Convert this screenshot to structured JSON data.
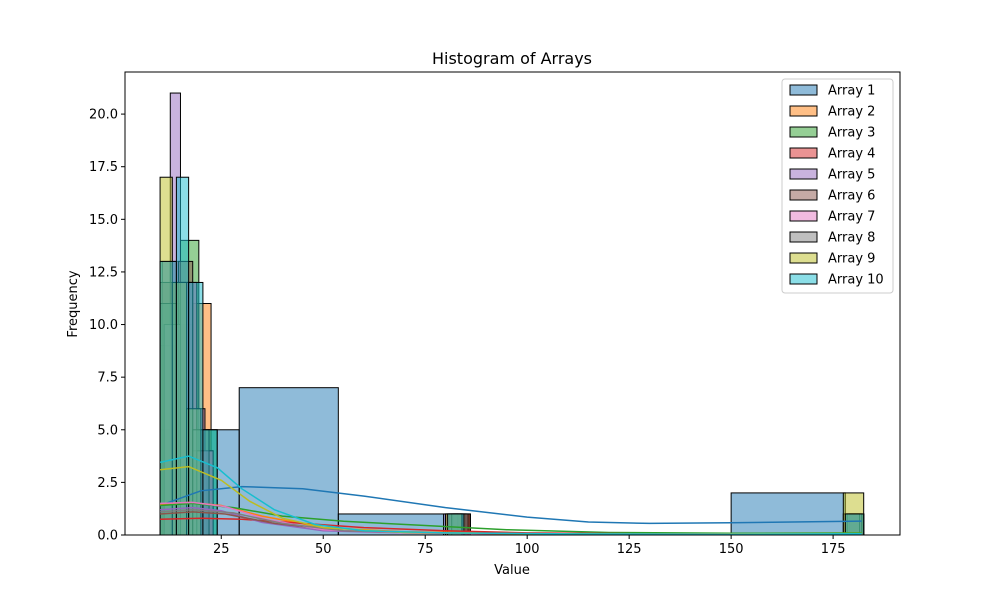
{
  "chart_data": {
    "type": "histogram",
    "title": "Histogram of Arrays",
    "xlabel": "Value",
    "ylabel": "Frequency",
    "xlim": [
      1.4,
      191.4
    ],
    "ylim": [
      0,
      22.0
    ],
    "x_ticks": [
      25,
      50,
      75,
      100,
      125,
      150,
      175
    ],
    "x_tick_labels": [
      "25",
      "50",
      "75",
      "100",
      "125",
      "150",
      "175"
    ],
    "y_ticks": [
      0,
      2.5,
      5,
      7.5,
      10,
      12.5,
      15,
      17.5,
      20
    ],
    "y_tick_labels": [
      "0.0",
      "2.5",
      "5.0",
      "7.5",
      "10.0",
      "12.5",
      "15.0",
      "17.5",
      "20.0"
    ],
    "grid": false,
    "legend_position": "top-right",
    "kde": true,
    "series": [
      {
        "name": "Array 1",
        "color": "#1f77b4",
        "bins": [
          {
            "x0": 10.0,
            "x1": 29.4,
            "count": 5
          },
          {
            "x0": 29.4,
            "x1": 53.7,
            "count": 7
          },
          {
            "x0": 53.7,
            "x1": 86.1,
            "count": 1
          },
          {
            "x0": 150.0,
            "x1": 178.0,
            "count": 2
          },
          {
            "x0": 178.0,
            "x1": 182.5,
            "count": 1
          }
        ],
        "kde": [
          [
            10,
            1.4
          ],
          [
            20,
            2.1
          ],
          [
            30,
            2.3
          ],
          [
            45,
            2.2
          ],
          [
            60,
            1.85
          ],
          [
            80,
            1.3
          ],
          [
            100,
            0.85
          ],
          [
            115,
            0.62
          ],
          [
            130,
            0.55
          ],
          [
            150,
            0.58
          ],
          [
            165,
            0.62
          ],
          [
            182,
            0.66
          ]
        ]
      },
      {
        "name": "Array 2",
        "color": "#ff7f0e",
        "bins": [
          {
            "x0": 10.0,
            "x1": 14.0,
            "count": 9
          },
          {
            "x0": 14.0,
            "x1": 18.0,
            "count": 10
          },
          {
            "x0": 18.0,
            "x1": 22.5,
            "count": 11
          },
          {
            "x0": 80.5,
            "x1": 86.0,
            "count": 1
          },
          {
            "x0": 178.0,
            "x1": 182.0,
            "count": 1
          }
        ],
        "kde": [
          [
            10,
            1.45
          ],
          [
            17,
            1.55
          ],
          [
            25,
            1.4
          ],
          [
            35,
            0.9
          ],
          [
            50,
            0.35
          ],
          [
            70,
            0.15
          ],
          [
            90,
            0.1
          ],
          [
            120,
            0.05
          ],
          [
            150,
            0.05
          ],
          [
            182,
            0.08
          ]
        ]
      },
      {
        "name": "Array 3",
        "color": "#2ca02c",
        "bins": [
          {
            "x0": 10.0,
            "x1": 15.0,
            "count": 11
          },
          {
            "x0": 15.0,
            "x1": 19.5,
            "count": 14
          },
          {
            "x0": 19.5,
            "x1": 24.0,
            "count": 5
          },
          {
            "x0": 80.0,
            "x1": 85.0,
            "count": 1
          },
          {
            "x0": 178.5,
            "x1": 182.5,
            "count": 1
          }
        ],
        "kde": [
          [
            10,
            1.4
          ],
          [
            18,
            1.5
          ],
          [
            28,
            1.3
          ],
          [
            40,
            0.9
          ],
          [
            55,
            0.65
          ],
          [
            75,
            0.45
          ],
          [
            95,
            0.25
          ],
          [
            120,
            0.12
          ],
          [
            150,
            0.08
          ],
          [
            182,
            0.1
          ]
        ]
      },
      {
        "name": "Array 4",
        "color": "#d62728",
        "bins": [
          {
            "x0": 10.5,
            "x1": 15.0,
            "count": 13
          },
          {
            "x0": 15.0,
            "x1": 19.0,
            "count": 12
          },
          {
            "x0": 19.0,
            "x1": 23.0,
            "count": 4
          },
          {
            "x0": 82.0,
            "x1": 86.0,
            "count": 1
          },
          {
            "x0": 179.0,
            "x1": 182.5,
            "count": 1
          }
        ],
        "kde": [
          [
            10,
            0.75
          ],
          [
            20,
            0.8
          ],
          [
            30,
            0.75
          ],
          [
            45,
            0.55
          ],
          [
            60,
            0.35
          ],
          [
            80,
            0.2
          ],
          [
            100,
            0.1
          ],
          [
            130,
            0.05
          ],
          [
            160,
            0.05
          ],
          [
            182,
            0.06
          ]
        ]
      },
      {
        "name": "Array 5",
        "color": "#9467bd",
        "bins": [
          {
            "x0": 12.5,
            "x1": 15.0,
            "count": 21
          },
          {
            "x0": 15.0,
            "x1": 18.0,
            "count": 12
          },
          {
            "x0": 18.0,
            "x1": 21.0,
            "count": 6
          },
          {
            "x0": 79.5,
            "x1": 83.0,
            "count": 1
          },
          {
            "x0": 179.0,
            "x1": 182.0,
            "count": 1
          }
        ],
        "kde": [
          [
            10,
            1.2
          ],
          [
            18,
            1.3
          ],
          [
            25,
            1.15
          ],
          [
            35,
            0.6
          ],
          [
            50,
            0.2
          ],
          [
            70,
            0.1
          ],
          [
            100,
            0.05
          ],
          [
            140,
            0.03
          ],
          [
            182,
            0.05
          ]
        ]
      },
      {
        "name": "Array 6",
        "color": "#8c564b",
        "bins": [
          {
            "x0": 10.0,
            "x1": 14.5,
            "count": 12
          },
          {
            "x0": 14.5,
            "x1": 18.0,
            "count": 13
          },
          {
            "x0": 18.0,
            "x1": 21.5,
            "count": 4
          },
          {
            "x0": 81.0,
            "x1": 85.0,
            "count": 1
          },
          {
            "x0": 178.0,
            "x1": 181.5,
            "count": 1
          }
        ],
        "kde": [
          [
            10,
            1.0
          ],
          [
            18,
            1.1
          ],
          [
            26,
            1.0
          ],
          [
            38,
            0.55
          ],
          [
            55,
            0.2
          ],
          [
            75,
            0.1
          ],
          [
            100,
            0.05
          ],
          [
            140,
            0.03
          ],
          [
            182,
            0.05
          ]
        ]
      },
      {
        "name": "Array 7",
        "color": "#e377c2",
        "bins": [
          {
            "x0": 11.0,
            "x1": 15.0,
            "count": 10
          },
          {
            "x0": 15.0,
            "x1": 19.0,
            "count": 12
          },
          {
            "x0": 19.0,
            "x1": 23.0,
            "count": 4
          },
          {
            "x0": 80.0,
            "x1": 84.0,
            "count": 1
          },
          {
            "x0": 178.5,
            "x1": 182.0,
            "count": 1
          }
        ],
        "kde": [
          [
            10,
            1.5
          ],
          [
            18,
            1.55
          ],
          [
            26,
            1.35
          ],
          [
            36,
            0.75
          ],
          [
            50,
            0.25
          ],
          [
            70,
            0.1
          ],
          [
            100,
            0.05
          ],
          [
            140,
            0.03
          ],
          [
            182,
            0.05
          ]
        ]
      },
      {
        "name": "Array 8",
        "color": "#7f7f7f",
        "bins": [
          {
            "x0": 10.0,
            "x1": 14.0,
            "count": 11
          },
          {
            "x0": 14.0,
            "x1": 18.0,
            "count": 12
          },
          {
            "x0": 18.0,
            "x1": 22.0,
            "count": 5
          },
          {
            "x0": 81.5,
            "x1": 85.5,
            "count": 1
          },
          {
            "x0": 177.5,
            "x1": 181.5,
            "count": 1
          }
        ],
        "kde": [
          [
            10,
            1.1
          ],
          [
            18,
            1.2
          ],
          [
            28,
            1.05
          ],
          [
            40,
            0.55
          ],
          [
            55,
            0.2
          ],
          [
            75,
            0.1
          ],
          [
            100,
            0.05
          ],
          [
            140,
            0.03
          ],
          [
            182,
            0.05
          ]
        ]
      },
      {
        "name": "Array 9",
        "color": "#bcbd22",
        "bins": [
          {
            "x0": 10.0,
            "x1": 13.0,
            "count": 17
          },
          {
            "x0": 13.0,
            "x1": 16.5,
            "count": 12
          },
          {
            "x0": 16.5,
            "x1": 20.0,
            "count": 6
          },
          {
            "x0": 80.0,
            "x1": 84.0,
            "count": 1
          },
          {
            "x0": 177.5,
            "x1": 182.5,
            "count": 2
          }
        ],
        "kde": [
          [
            10,
            3.1
          ],
          [
            17,
            3.25
          ],
          [
            25,
            2.6
          ],
          [
            32,
            1.6
          ],
          [
            40,
            0.8
          ],
          [
            50,
            0.35
          ],
          [
            70,
            0.12
          ],
          [
            100,
            0.06
          ],
          [
            140,
            0.05
          ],
          [
            182,
            0.07
          ]
        ]
      },
      {
        "name": "Array 10",
        "color": "#17becf",
        "bins": [
          {
            "x0": 10.0,
            "x1": 14.0,
            "count": 13
          },
          {
            "x0": 14.0,
            "x1": 17.0,
            "count": 17
          },
          {
            "x0": 17.0,
            "x1": 20.5,
            "count": 12
          },
          {
            "x0": 20.5,
            "x1": 24.0,
            "count": 5
          },
          {
            "x0": 80.5,
            "x1": 84.5,
            "count": 1
          },
          {
            "x0": 178.0,
            "x1": 182.5,
            "count": 1
          }
        ],
        "kde": [
          [
            10,
            3.45
          ],
          [
            17,
            3.75
          ],
          [
            24,
            3.2
          ],
          [
            30,
            2.2
          ],
          [
            38,
            1.2
          ],
          [
            48,
            0.5
          ],
          [
            60,
            0.2
          ],
          [
            80,
            0.1
          ],
          [
            110,
            0.05
          ],
          [
            150,
            0.04
          ],
          [
            182,
            0.06
          ]
        ]
      }
    ]
  }
}
